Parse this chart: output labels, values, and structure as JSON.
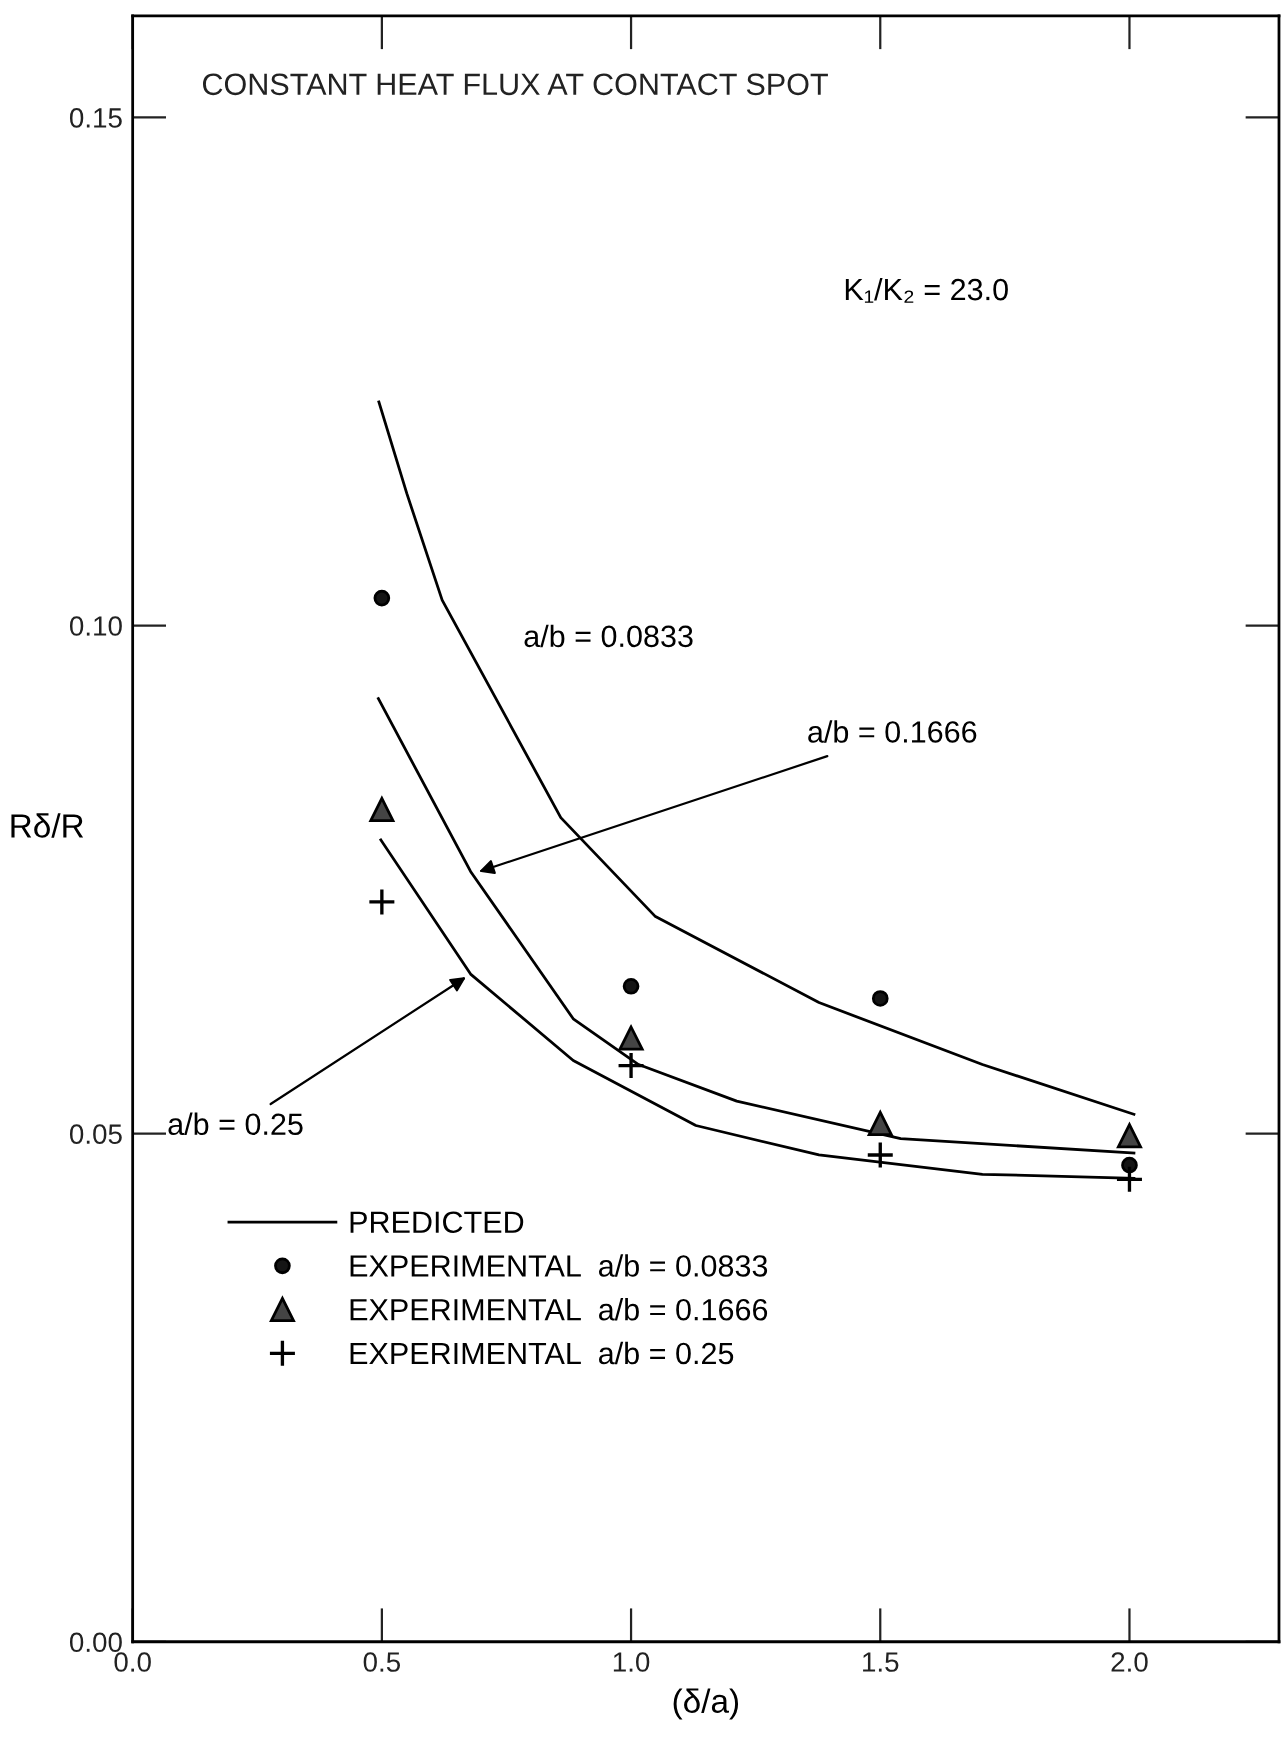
{
  "chart_data": {
    "type": "line",
    "title": "CONSTANT HEAT FLUX AT CONTACT SPOT",
    "xlabel": "(δ/a)",
    "ylabel": "Rδ/R",
    "xlim": [
      0,
      2.3
    ],
    "xticks": [
      {
        "value": 0,
        "label": "0.0"
      },
      0.5,
      {
        "value": 1,
        "label": "1.0"
      },
      1.5,
      {
        "value": 2,
        "label": "2.0"
      }
    ],
    "ylim": [
      0,
      0.16
    ],
    "yticks": [
      {
        "value": 0,
        "label": "0.00"
      },
      0.05,
      {
        "value": 0.1,
        "label": "0.10"
      },
      0.15
    ],
    "grid": false,
    "legend": "bottom left",
    "series": [
      {
        "name": "PREDICTED",
        "color": "#000000",
        "marker": "none",
        "x": [
          0.494,
          0.55,
          0.621,
          0.859,
          1.048,
          1.377,
          1.705,
          2.009
        ],
        "values": [
          0.122,
          0.113,
          0.1025,
          0.0811,
          0.0714,
          0.0629,
          0.0568,
          0.0519
        ]
      },
      {
        "color": "#000000",
        "marker": "none",
        "x": [
          0.493,
          0.678,
          0.884,
          1.015,
          1.212,
          1.541,
          2.009
        ],
        "values": [
          0.0928,
          0.0758,
          0.0613,
          0.0568,
          0.0532,
          0.0495,
          0.0481
        ]
      },
      {
        "color": "#000000",
        "marker": "none",
        "x": [
          0.498,
          0.678,
          0.884,
          1.13,
          1.377,
          1.705,
          2.009
        ],
        "values": [
          0.0789,
          0.0657,
          0.0572,
          0.0508,
          0.0479,
          0.046,
          0.0456
        ]
      },
      {
        "name": "EXPERIMENTAL  a/b = 0.0833",
        "type": "scatter",
        "color": "#151515",
        "marker": "circle",
        "x": [
          0.5,
          1.0,
          1.5,
          2.0
        ],
        "values": [
          0.1027,
          0.0645,
          0.0633,
          0.0469
        ]
      },
      {
        "name": "EXPERIMENTAL  a/b = 0.1666",
        "type": "scatter",
        "color": "#444444",
        "marker": "triangle",
        "x": [
          0.5,
          1.0,
          1.5,
          2.0
        ],
        "values": [
          0.0819,
          0.0594,
          0.051,
          0.0498
        ]
      },
      {
        "name": "EXPERIMENTAL  a/b = 0.25",
        "type": "scatter",
        "color": "#000000",
        "marker": "cross",
        "x": [
          0.5,
          1.0,
          1.5,
          2.0
        ],
        "values": [
          0.0728,
          0.0567,
          0.0479,
          0.0455
        ]
      }
    ],
    "annotations": [
      {
        "text": "a/b = 0.0833",
        "x": 0.7,
        "y": 0.0954
      },
      {
        "text": "a/b = 0.1666",
        "x": 0.684,
        "y": 0.0756
      },
      {
        "text": "a/b = 0.25",
        "x": 0.678,
        "y": 0.0657
      },
      "K₁/K₂ = 23.0"
    ]
  }
}
